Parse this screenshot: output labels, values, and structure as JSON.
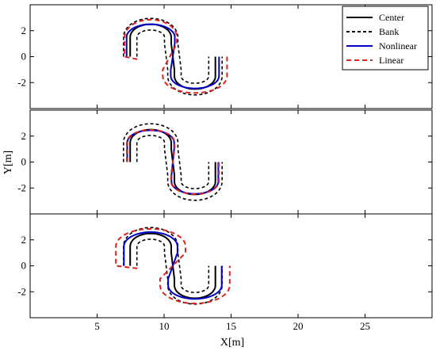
{
  "chart_data": {
    "type": "line",
    "xlabel": "X[m]",
    "ylabel": "Y[m]",
    "xlim": [
      0,
      30
    ],
    "ylim": [
      -4,
      4
    ],
    "x_ticks": [
      5,
      10,
      15,
      20,
      25
    ],
    "y_ticks": [
      2,
      0,
      -2
    ],
    "x_tick_labels": [
      "5",
      "10",
      "15",
      "20",
      "25"
    ],
    "y_tick_labels": [
      "2",
      "0",
      "-2"
    ],
    "grid": false,
    "legend_position": "top-right",
    "legend": [
      {
        "label": "Center",
        "color": "#000000",
        "style": "solid"
      },
      {
        "label": "Bank",
        "color": "#000000",
        "style": "dashed"
      },
      {
        "label": "Nonlinear",
        "color": "#0000cc",
        "style": "solid"
      },
      {
        "label": "Linear",
        "color": "#dd2222",
        "style": "dashed"
      }
    ],
    "track": {
      "description_shape": "S-curve",
      "start": [
        7.5,
        0
      ],
      "upper_center": [
        9.0,
        2.5
      ],
      "upper_radius": 1.8,
      "lower_center": [
        12.3,
        -2.5
      ],
      "lower_radius": 1.8,
      "bank_offset": 0.5,
      "end": [
        14.1,
        0
      ]
    },
    "panels": [
      {
        "panel": 1,
        "series": [
          {
            "name": "Center",
            "kind": "center",
            "offset": 0
          },
          {
            "name": "Bank",
            "kind": "bank",
            "offset": 0.5
          },
          {
            "name": "Bank",
            "kind": "bank",
            "offset": -0.5
          },
          {
            "name": "Nonlinear",
            "kind": "ellipse",
            "rx_upper": 1.8,
            "ry_upper": 1.0,
            "rx_lower": 1.8,
            "ry_lower": 0.95
          },
          {
            "name": "Linear",
            "kind": "ellipse",
            "rx_upper": 1.95,
            "ry_upper": 1.35,
            "rx_lower": 2.4,
            "ry_lower": 1.3,
            "start_x": 8.0,
            "start_y": -0.2
          }
        ]
      },
      {
        "panel": 2,
        "series": [
          {
            "name": "Center",
            "kind": "center",
            "offset": 0
          },
          {
            "name": "Bank",
            "kind": "bank",
            "offset": 0.5
          },
          {
            "name": "Bank",
            "kind": "bank",
            "offset": -0.5
          },
          {
            "name": "Nonlinear",
            "kind": "ellipse",
            "rx_upper": 1.75,
            "ry_upper": 0.95,
            "rx_lower": 1.75,
            "ry_lower": 0.95
          },
          {
            "name": "Linear",
            "kind": "ellipse",
            "rx_upper": 1.78,
            "ry_upper": 0.97,
            "rx_lower": 1.78,
            "ry_lower": 0.97
          }
        ]
      },
      {
        "panel": 3,
        "series": [
          {
            "name": "Center",
            "kind": "center",
            "offset": 0
          },
          {
            "name": "Bank",
            "kind": "bank",
            "offset": 0.5
          },
          {
            "name": "Bank",
            "kind": "bank",
            "offset": -0.5
          },
          {
            "name": "Nonlinear",
            "kind": "ellipse",
            "rx_upper": 2.0,
            "ry_upper": 1.1,
            "rx_lower": 2.0,
            "ry_lower": 1.05
          },
          {
            "name": "Linear",
            "kind": "ellipse",
            "rx_upper": 2.6,
            "ry_upper": 1.35,
            "rx_lower": 2.6,
            "ry_lower": 1.4,
            "start_x": 8.0,
            "start_y": -0.2
          }
        ]
      }
    ]
  }
}
